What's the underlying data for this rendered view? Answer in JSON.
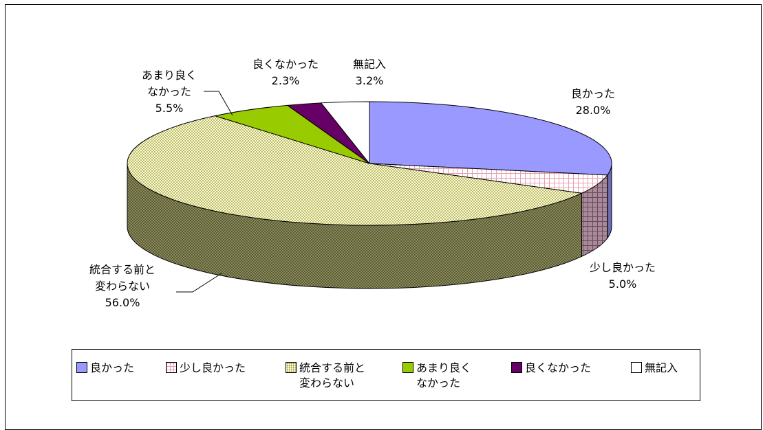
{
  "chart_data": {
    "type": "pie",
    "style": "3d",
    "categories": [
      "良かった",
      "少し良かった",
      "統合する前と\n変わらない",
      "あまり良く\nなかった",
      "良くなかった",
      "無記入"
    ],
    "values": [
      28.0,
      5.0,
      56.0,
      5.5,
      2.3,
      3.2
    ],
    "data_labels": [
      [
        "良かった",
        "28.0%"
      ],
      [
        "少し良かった",
        "5.0%"
      ],
      [
        "統合する前と",
        "変わらない",
        "56.0%"
      ],
      [
        "あまり良く",
        "なかった",
        "5.5%"
      ],
      [
        "良くなかった",
        "2.3%"
      ],
      [
        "無記入",
        "3.2%"
      ]
    ],
    "colors": [
      "#9999ff",
      "#ffffff",
      "#ffffcc",
      "#99cc00",
      "#660066",
      "#ffffff"
    ],
    "patterns": [
      "solid",
      "grid-pink",
      "dots-olive",
      "solid",
      "solid",
      "solid"
    ],
    "legend_position": "bottom",
    "title": ""
  },
  "legend": {
    "items": [
      {
        "name": "良かった",
        "pattern": "solid",
        "color": "#9999ff"
      },
      {
        "name": "少し良かった",
        "pattern": "grid",
        "color": "#ffffff"
      },
      {
        "name": "統合する前と\n変わらない",
        "pattern": "dots",
        "color": "#ffffcc"
      },
      {
        "name": "あまり良く\nなかった",
        "pattern": "solid",
        "color": "#99cc00"
      },
      {
        "name": "良くなかった",
        "pattern": "solid",
        "color": "#660066"
      },
      {
        "name": "無記入",
        "pattern": "solid",
        "color": "#ffffff"
      }
    ]
  }
}
